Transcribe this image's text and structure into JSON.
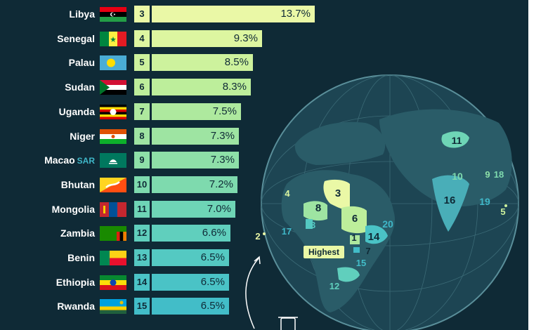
{
  "chart_data": {
    "type": "bar",
    "orientation": "horizontal",
    "title": "",
    "xlabel": "",
    "ylabel": "",
    "xlim": [
      0,
      13.7
    ],
    "rows": [
      {
        "rank": "3",
        "country": "Libya",
        "suffix": "",
        "value": 13.7,
        "label": "13.7%",
        "bar_color": "#eaf8a6",
        "rank_color": "#eaf8a6",
        "flag": "libya"
      },
      {
        "rank": "4",
        "country": "Senegal",
        "suffix": "",
        "value": 9.3,
        "label": "9.3%",
        "bar_color": "#ddf6a0",
        "rank_color": "#ddf6a0",
        "flag": "senegal"
      },
      {
        "rank": "5",
        "country": "Palau",
        "suffix": "",
        "value": 8.5,
        "label": "8.5%",
        "bar_color": "#cdf29d",
        "rank_color": "#cdf29d",
        "flag": "palau"
      },
      {
        "rank": "6",
        "country": "Sudan",
        "suffix": "",
        "value": 8.3,
        "label": "8.3%",
        "bar_color": "#bdee9b",
        "rank_color": "#bdee9b",
        "flag": "sudan"
      },
      {
        "rank": "7",
        "country": "Uganda",
        "suffix": "",
        "value": 7.5,
        "label": "7.5%",
        "bar_color": "#aee99e",
        "rank_color": "#aee99e",
        "flag": "uganda"
      },
      {
        "rank": "8",
        "country": "Niger",
        "suffix": "",
        "value": 7.3,
        "label": "7.3%",
        "bar_color": "#9ee4a2",
        "rank_color": "#9ee4a2",
        "flag": "niger"
      },
      {
        "rank": "9",
        "country": "Macao",
        "suffix": "SAR",
        "value": 7.3,
        "label": "7.3%",
        "bar_color": "#8ee0a8",
        "rank_color": "#8ee0a8",
        "flag": "macao"
      },
      {
        "rank": "10",
        "country": "Bhutan",
        "suffix": "",
        "value": 7.2,
        "label": "7.2%",
        "bar_color": "#7edaae",
        "rank_color": "#7edaae",
        "flag": "bhutan"
      },
      {
        "rank": "11",
        "country": "Mongolia",
        "suffix": "",
        "value": 7.0,
        "label": "7.0%",
        "bar_color": "#6ed5b6",
        "rank_color": "#6ed5b6",
        "flag": "mongolia"
      },
      {
        "rank": "12",
        "country": "Zambia",
        "suffix": "",
        "value": 6.6,
        "label": "6.6%",
        "bar_color": "#60cfbd",
        "rank_color": "#60cfbd",
        "flag": "zambia"
      },
      {
        "rank": "13",
        "country": "Benin",
        "suffix": "",
        "value": 6.5,
        "label": "6.5%",
        "bar_color": "#54c9c2",
        "rank_color": "#54c9c2",
        "flag": "benin"
      },
      {
        "rank": "14",
        "country": "Ethiopia",
        "suffix": "",
        "value": 6.5,
        "label": "6.5%",
        "bar_color": "#4ac3c6",
        "rank_color": "#4ac3c6",
        "flag": "ethiopia"
      },
      {
        "rank": "15",
        "country": "Rwanda",
        "suffix": "",
        "value": 6.5,
        "label": "6.5%",
        "bar_color": "#42bdc8",
        "rank_color": "#42bdc8",
        "flag": "rwanda"
      }
    ]
  },
  "globe": {
    "highlight_label": "Highest",
    "labels": [
      {
        "text": "1",
        "color": "#0f2a36"
      },
      {
        "text": "2",
        "color": "#eaf8a6"
      },
      {
        "text": "3",
        "color": "#0f2a36"
      },
      {
        "text": "4",
        "color": "#ddf6a0"
      },
      {
        "text": "5",
        "color": "#cdf29d"
      },
      {
        "text": "6",
        "color": "#0f2a36"
      },
      {
        "text": "7",
        "color": "#0f2a36"
      },
      {
        "text": "8",
        "color": "#0f2a36"
      },
      {
        "text": "9",
        "color": "#8ee0a8"
      },
      {
        "text": "10",
        "color": "#7edaae"
      },
      {
        "text": "11",
        "color": "#0f2a36"
      },
      {
        "text": "12",
        "color": "#60cfbd"
      },
      {
        "text": "13",
        "color": "#54c9c2"
      },
      {
        "text": "14",
        "color": "#0f2a36"
      },
      {
        "text": "15",
        "color": "#42bdc8"
      },
      {
        "text": "16",
        "color": "#0f2a36"
      },
      {
        "text": "17",
        "color": "#3fb7c8"
      },
      {
        "text": "18",
        "color": "#7edaae"
      },
      {
        "text": "19",
        "color": "#3fb7c8"
      },
      {
        "text": "20",
        "color": "#3fb7c8"
      }
    ]
  },
  "colors": {
    "background": "#0f2a36",
    "globe": "#1d4553",
    "land": "#2a5c68",
    "ink": "#0f2a36"
  }
}
